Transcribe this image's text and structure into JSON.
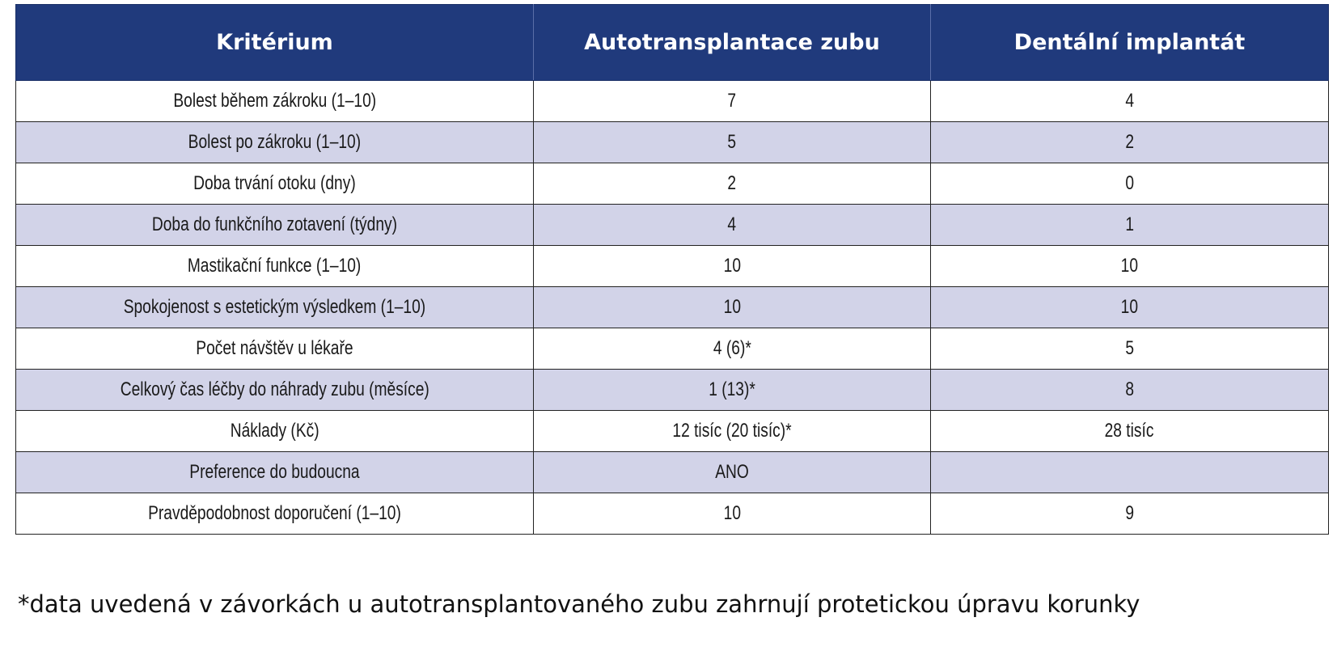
{
  "table": {
    "headers": [
      "Kritérium",
      "Autotransplantace zubu",
      "Dentální implantát"
    ],
    "rows": [
      [
        "Bolest během zákroku (1–10)",
        "7",
        "4"
      ],
      [
        "Bolest po zákroku (1–10)",
        "5",
        "2"
      ],
      [
        "Doba trvání otoku (dny)",
        "2",
        "0"
      ],
      [
        "Doba do funkčního zotavení (týdny)",
        "4",
        "1"
      ],
      [
        "Mastikační funkce (1–10)",
        "10",
        "10"
      ],
      [
        "Spokojenost s estetickým výsledkem (1–10)",
        "10",
        "10"
      ],
      [
        "Počet návštěv u lékaře",
        "4 (6)*",
        "5"
      ],
      [
        "Celkový čas léčby do náhrady zubu (měsíce)",
        "1 (13)*",
        "8"
      ],
      [
        "Náklady (Kč)",
        "12 tisíc (20 tisíc)*",
        "28 tisíc"
      ],
      [
        "Preference do budoucna",
        "ANO",
        ""
      ],
      [
        "Pravděpodobnost doporučení (1–10)",
        "10",
        "9"
      ]
    ]
  },
  "footnote": "*data uvedená v závorkách u autotransplantovaného zubu zahrnují protetickou úpravu korunky",
  "colors": {
    "header_bg": "#203a7c",
    "header_text": "#ffffff",
    "stripe_bg": "#d2d3e8"
  }
}
